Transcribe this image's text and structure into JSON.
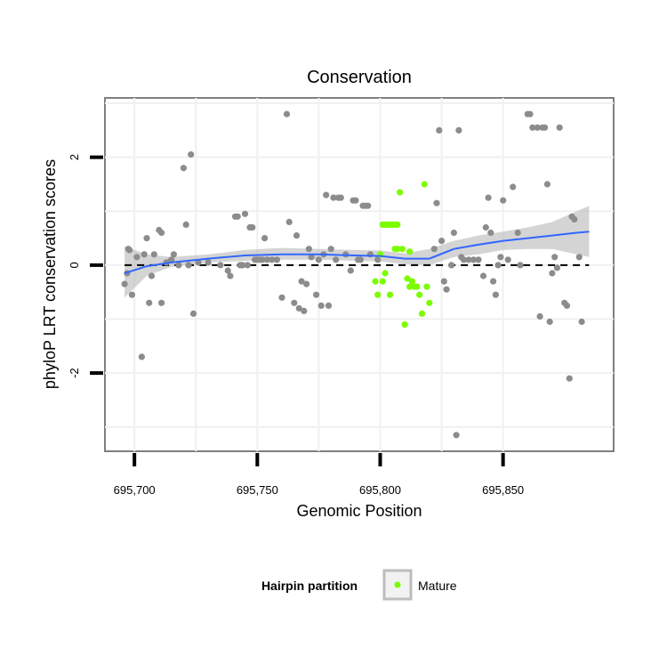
{
  "chart_data": {
    "type": "scatter",
    "title": "Conservation",
    "xlabel": "Genomic Position",
    "ylabel": "phyloP LRT conservation scores",
    "xlim": [
      695688,
      695895
    ],
    "ylim": [
      -3.45,
      3.1
    ],
    "x_ticks": [
      695700,
      695750,
      695800,
      695850
    ],
    "x_tick_labels": [
      "695,700",
      "695,750",
      "695,800",
      "695,850"
    ],
    "y_ticks": [
      -2,
      0,
      2
    ],
    "y_tick_labels": [
      "-2",
      "0",
      "2"
    ],
    "grid": true,
    "reference_line": {
      "y": 0,
      "style": "dashed",
      "color": "#000000"
    },
    "legend": {
      "title": "Hairpin partition",
      "position": "bottom",
      "entries": [
        {
          "label": "Mature",
          "color": "#7cfc00"
        }
      ]
    },
    "colors": {
      "other_points": "#8c8c8c",
      "mature_points": "#7cfc00",
      "smooth_line": "#3366ff",
      "ribbon": "#bdbdbd"
    },
    "series": [
      {
        "name": "",
        "color": "#8c8c8c",
        "points": [
          [
            695696,
            -0.35
          ],
          [
            695697,
            -0.15
          ],
          [
            695697.5,
            0.3
          ],
          [
            695698,
            0.28
          ],
          [
            695699,
            -0.55
          ],
          [
            695701,
            0.15
          ],
          [
            695703,
            -1.7
          ],
          [
            695704,
            0.2
          ],
          [
            695705,
            0.5
          ],
          [
            695706,
            -0.7
          ],
          [
            695707,
            -0.2
          ],
          [
            695708,
            0.2
          ],
          [
            695710,
            0.65
          ],
          [
            695711,
            0.6
          ],
          [
            695711,
            -0.7
          ],
          [
            695713,
            0.05
          ],
          [
            695715,
            0.1
          ],
          [
            695716,
            0.2
          ],
          [
            695718,
            0.0
          ],
          [
            695720,
            1.8
          ],
          [
            695721,
            0.75
          ],
          [
            695722,
            0.0
          ],
          [
            695723,
            2.05
          ],
          [
            695724,
            -0.9
          ],
          [
            695726,
            0.05
          ],
          [
            695730,
            0.05
          ],
          [
            695735,
            0.0
          ],
          [
            695738,
            -0.1
          ],
          [
            695739,
            -0.2
          ],
          [
            695741,
            0.9
          ],
          [
            695742,
            0.9
          ],
          [
            695743,
            0.0
          ],
          [
            695744,
            0.0
          ],
          [
            695745,
            0.95
          ],
          [
            695746,
            0.0
          ],
          [
            695747,
            0.7
          ],
          [
            695748,
            0.7
          ],
          [
            695749,
            0.1
          ],
          [
            695750,
            0.1
          ],
          [
            695751,
            0.1
          ],
          [
            695752,
            0.1
          ],
          [
            695753,
            0.5
          ],
          [
            695754,
            0.1
          ],
          [
            695756,
            0.1
          ],
          [
            695758,
            0.1
          ],
          [
            695760,
            -0.6
          ],
          [
            695762,
            2.8
          ],
          [
            695763,
            0.8
          ],
          [
            695765,
            -0.7
          ],
          [
            695766,
            0.55
          ],
          [
            695767,
            -0.8
          ],
          [
            695768,
            -0.3
          ],
          [
            695769,
            -0.85
          ],
          [
            695770,
            -0.35
          ],
          [
            695771,
            0.3
          ],
          [
            695772,
            0.15
          ],
          [
            695774,
            -0.55
          ],
          [
            695775,
            0.1
          ],
          [
            695776,
            -0.75
          ],
          [
            695777,
            0.2
          ],
          [
            695778,
            1.3
          ],
          [
            695779,
            -0.75
          ],
          [
            695780,
            0.3
          ],
          [
            695781,
            1.25
          ],
          [
            695782,
            0.1
          ],
          [
            695783,
            1.25
          ],
          [
            695784,
            1.25
          ],
          [
            695786,
            0.2
          ],
          [
            695788,
            -0.1
          ],
          [
            695789,
            1.2
          ],
          [
            695790,
            1.2
          ],
          [
            695791,
            0.1
          ],
          [
            695792,
            0.1
          ],
          [
            695793,
            1.1
          ],
          [
            695794,
            1.1
          ],
          [
            695795,
            1.1
          ],
          [
            695796,
            0.2
          ],
          [
            695799,
            0.1
          ],
          [
            695822,
            0.3
          ],
          [
            695823,
            1.15
          ],
          [
            695824,
            2.5
          ],
          [
            695825,
            0.45
          ],
          [
            695826,
            -0.3
          ],
          [
            695827,
            -0.45
          ],
          [
            695829,
            0.0
          ],
          [
            695830,
            0.6
          ],
          [
            695831,
            -3.15
          ],
          [
            695832,
            2.5
          ],
          [
            695833,
            0.15
          ],
          [
            695834,
            0.1
          ],
          [
            695836,
            0.1
          ],
          [
            695838,
            0.1
          ],
          [
            695840,
            0.1
          ],
          [
            695842,
            -0.2
          ],
          [
            695843,
            0.7
          ],
          [
            695844,
            1.25
          ],
          [
            695845,
            0.6
          ],
          [
            695846,
            -0.3
          ],
          [
            695847,
            -0.55
          ],
          [
            695848,
            0.0
          ],
          [
            695849,
            0.15
          ],
          [
            695850,
            1.2
          ],
          [
            695852,
            0.1
          ],
          [
            695854,
            1.45
          ],
          [
            695856,
            0.6
          ],
          [
            695857,
            0.0
          ],
          [
            695860,
            2.8
          ],
          [
            695861,
            2.8
          ],
          [
            695862,
            2.55
          ],
          [
            695864,
            2.55
          ],
          [
            695865,
            -0.95
          ],
          [
            695866,
            2.55
          ],
          [
            695867,
            2.55
          ],
          [
            695868,
            1.5
          ],
          [
            695869,
            -1.05
          ],
          [
            695870,
            -0.15
          ],
          [
            695871,
            0.15
          ],
          [
            695872,
            -0.05
          ],
          [
            695873,
            2.55
          ],
          [
            695875,
            -0.7
          ],
          [
            695876,
            -0.75
          ],
          [
            695877,
            -2.1
          ],
          [
            695878,
            0.9
          ],
          [
            695879,
            0.85
          ],
          [
            695881,
            0.15
          ],
          [
            695882,
            -1.05
          ]
        ]
      },
      {
        "name": "Mature",
        "color": "#7cfc00",
        "points": [
          [
            695798,
            -0.3
          ],
          [
            695799,
            -0.55
          ],
          [
            695800,
            0.2
          ],
          [
            695801,
            0.75
          ],
          [
            695802,
            0.75
          ],
          [
            695803,
            0.75
          ],
          [
            695804,
            0.75
          ],
          [
            695805,
            0.75
          ],
          [
            695806,
            0.75
          ],
          [
            695807,
            0.75
          ],
          [
            695801,
            -0.3
          ],
          [
            695802,
            -0.15
          ],
          [
            695803,
            0.75
          ],
          [
            695804,
            -0.55
          ],
          [
            695806,
            0.3
          ],
          [
            695807,
            0.3
          ],
          [
            695808,
            1.35
          ],
          [
            695809,
            0.3
          ],
          [
            695810,
            -1.1
          ],
          [
            695811,
            -0.25
          ],
          [
            695812,
            0.25
          ],
          [
            695813,
            -0.3
          ],
          [
            695814,
            -0.4
          ],
          [
            695815,
            -0.4
          ],
          [
            695816,
            -0.55
          ],
          [
            695817,
            -0.9
          ],
          [
            695818,
            1.5
          ],
          [
            695819,
            -0.4
          ],
          [
            695820,
            -0.7
          ],
          [
            695812,
            -0.4
          ]
        ]
      }
    ],
    "smooth": {
      "x": [
        695696,
        695705,
        695715,
        695730,
        695745,
        695760,
        695775,
        695790,
        695800,
        695810,
        695820,
        695830,
        695840,
        695850,
        695860,
        695870,
        695880,
        695885
      ],
      "y": [
        -0.15,
        -0.02,
        0.05,
        0.12,
        0.18,
        0.2,
        0.2,
        0.18,
        0.17,
        0.12,
        0.12,
        0.3,
        0.38,
        0.45,
        0.5,
        0.55,
        0.6,
        0.62
      ],
      "lower": [
        -0.6,
        -0.2,
        -0.03,
        0.05,
        0.08,
        0.1,
        0.1,
        0.08,
        0.07,
        0.02,
        0.0,
        0.15,
        0.2,
        0.28,
        0.3,
        0.3,
        0.2,
        0.15
      ],
      "upper": [
        0.35,
        0.2,
        0.15,
        0.2,
        0.28,
        0.32,
        0.3,
        0.28,
        0.27,
        0.22,
        0.3,
        0.45,
        0.55,
        0.62,
        0.7,
        0.8,
        1.0,
        1.1
      ]
    }
  }
}
